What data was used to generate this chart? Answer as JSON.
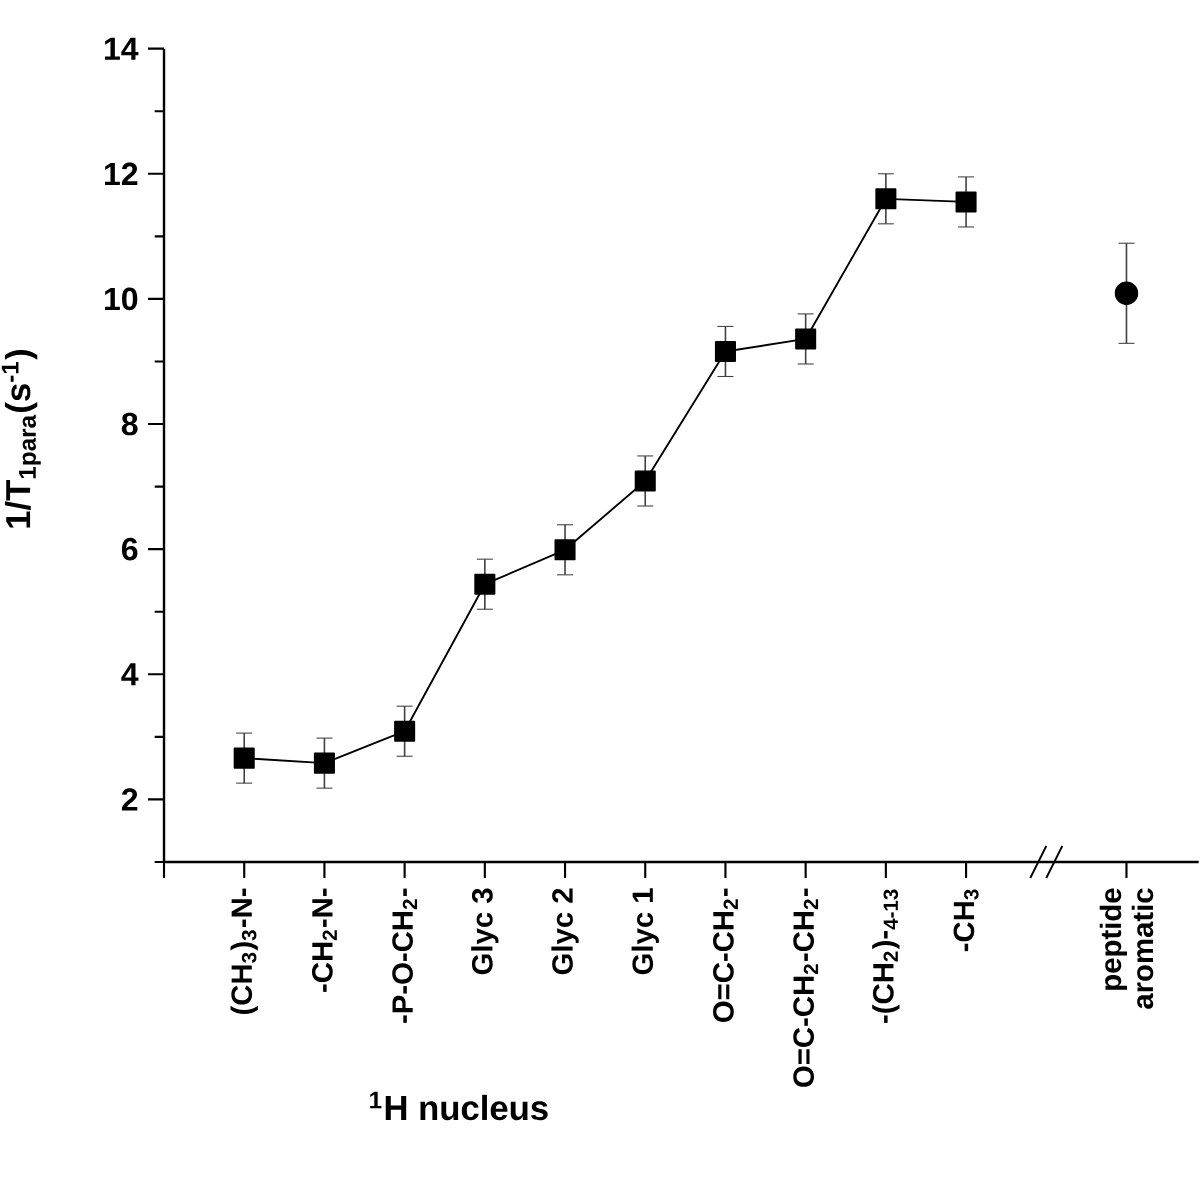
{
  "chart_data": {
    "type": "line",
    "xlabel": "$^{1}$H nucleus",
    "ylabel": "1/T$_{1para}$(s$^{-1}$)",
    "categories": [
      "(CH$_{3}$)$_{3}$-N-",
      "-CH$_{2}$-N-",
      "-P-O-CH$_{2}$-",
      "Glyc 3",
      "Glyc 2",
      "Glyc 1",
      "O=C-CH$_{2}$-",
      "O=C-CH$_{2}$-CH$_{2}$-",
      "-(CH$_{2}$)-$_{4-13}$",
      "-CH$_{3}$",
      null,
      "peptide aromatic"
    ],
    "series": [
      {
        "color": "#000000",
        "marker": "square",
        "values": [
          2.66,
          2.58,
          3.09,
          5.44,
          5.99,
          7.09,
          9.16,
          9.36,
          11.6,
          11.55,
          null,
          null
        ],
        "errors": [
          0.4,
          0.4,
          0.4,
          0.4,
          0.4,
          0.4,
          0.4,
          0.4,
          0.4,
          0.4,
          null,
          null
        ]
      },
      {
        "type": "scatter",
        "color": "#000000",
        "marker": "circle",
        "values": [
          null,
          null,
          null,
          null,
          null,
          null,
          null,
          null,
          null,
          null,
          null,
          10.09
        ],
        "errors": [
          null,
          null,
          null,
          null,
          null,
          null,
          null,
          null,
          null,
          null,
          null,
          0.8
        ]
      }
    ],
    "ylim": [
      1,
      14
    ],
    "yticks": [
      {
        "value": 1,
        "label": null
      },
      2,
      {
        "value": 3,
        "label": null
      },
      4,
      {
        "value": 5,
        "label": null
      },
      6,
      {
        "value": 7,
        "label": null
      },
      8,
      {
        "value": 9,
        "label": null
      },
      10,
      {
        "value": 11,
        "label": null
      },
      12,
      {
        "value": 13,
        "label": null
      },
      14
    ],
    "grid": false
  }
}
